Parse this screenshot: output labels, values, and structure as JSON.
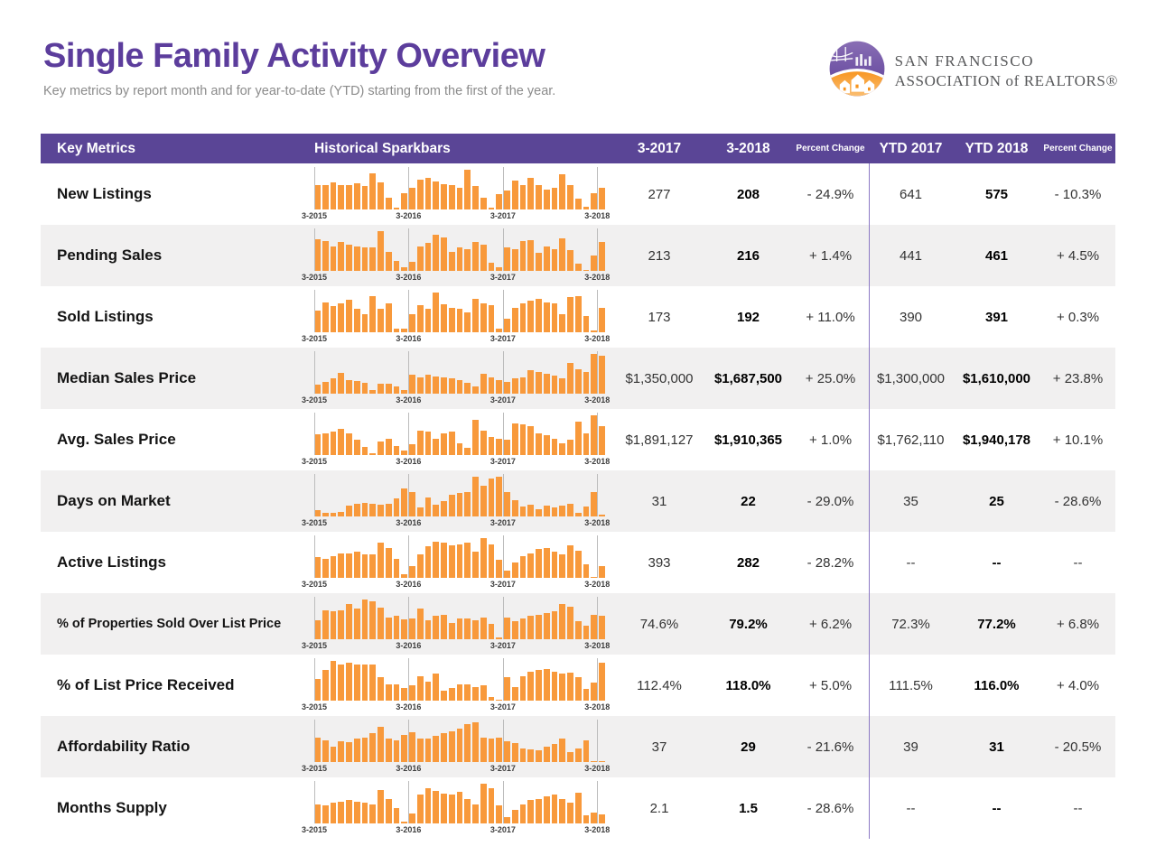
{
  "page": {
    "title": "Single Family Activity Overview",
    "subtitle": "Key metrics by report month and for year-to-date (YTD) starting from the first of the year."
  },
  "logo": {
    "line1": "SAN FRANCISCO",
    "line2": "ASSOCIATION of REALTORS®"
  },
  "colors": {
    "title_purple": "#5c3d9c",
    "header_bg": "#5a4596",
    "bar_orange": "#f8993b",
    "alt_row": "#f1f0f0",
    "divider_purple": "#8c79c4"
  },
  "table": {
    "columns": {
      "key_metrics": "Key Metrics",
      "sparkbars": "Historical Sparkbars",
      "m1": "3-2017",
      "m2": "3-2018",
      "pct": "Percent Change",
      "y1": "YTD 2017",
      "y2": "YTD 2018",
      "pct2": "Percent Change"
    },
    "axis_labels": [
      "3-2015",
      "3-2016",
      "3-2017",
      "3-2018"
    ],
    "rows": [
      {
        "label": "New Listings",
        "m1": "277",
        "m2": "208",
        "pct": "- 24.9%",
        "y1": "641",
        "y2": "575",
        "pct2": "- 10.3%",
        "spark": [
          62,
          62,
          68,
          62,
          62,
          65,
          58,
          92,
          68,
          30,
          5,
          42,
          55,
          75,
          80,
          70,
          63,
          62,
          55,
          100,
          58,
          30,
          5,
          38,
          48,
          72,
          62,
          80,
          62,
          50,
          55,
          88,
          62,
          28,
          6,
          42,
          55
        ]
      },
      {
        "label": "Pending Sales",
        "m1": "213",
        "m2": "216",
        "pct": "+ 1.4%",
        "y1": "441",
        "y2": "461",
        "pct2": "+ 4.5%",
        "spark": [
          80,
          75,
          62,
          72,
          65,
          62,
          60,
          58,
          100,
          48,
          25,
          10,
          22,
          62,
          70,
          92,
          85,
          48,
          58,
          55,
          72,
          65,
          20,
          8,
          60,
          55,
          75,
          78,
          45,
          62,
          55,
          82,
          52,
          18,
          3,
          38,
          72
        ]
      },
      {
        "label": "Sold Listings",
        "m1": "173",
        "m2": "192",
        "pct": "+ 11.0%",
        "y1": "390",
        "y2": "391",
        "pct2": "+ 0.3%",
        "spark": [
          55,
          75,
          65,
          72,
          82,
          60,
          45,
          92,
          58,
          72,
          8,
          8,
          45,
          68,
          58,
          100,
          70,
          62,
          58,
          50,
          85,
          72,
          68,
          10,
          35,
          62,
          72,
          80,
          85,
          75,
          72,
          45,
          88,
          92,
          40,
          4,
          62
        ]
      },
      {
        "label": "Median Sales Price",
        "m1": "$1,350,000",
        "m2": "$1,687,500",
        "pct": "+ 25.0%",
        "y1": "$1,300,000",
        "y2": "$1,610,000",
        "pct2": "+ 23.8%",
        "spark": [
          22,
          30,
          38,
          52,
          35,
          32,
          28,
          8,
          25,
          25,
          18,
          10,
          48,
          42,
          48,
          44,
          40,
          38,
          35,
          28,
          18,
          50,
          42,
          35,
          30,
          38,
          42,
          58,
          55,
          50,
          45,
          38,
          78,
          62,
          55,
          100,
          95
        ]
      },
      {
        "label": "Avg. Sales Price",
        "m1": "$1,891,127",
        "m2": "$1,910,365",
        "pct": "+ 1.0%",
        "y1": "$1,762,110",
        "y2": "$1,940,178",
        "pct2": "+ 10.1%",
        "spark": [
          52,
          55,
          58,
          65,
          55,
          38,
          20,
          5,
          35,
          42,
          22,
          12,
          28,
          62,
          58,
          42,
          55,
          58,
          30,
          18,
          88,
          62,
          45,
          42,
          38,
          80,
          78,
          72,
          55,
          50,
          42,
          30,
          38,
          85,
          55,
          100,
          72
        ]
      },
      {
        "label": "Days on Market",
        "m1": "31",
        "m2": "22",
        "pct": "- 29.0%",
        "y1": "35",
        "y2": "25",
        "pct2": "- 28.6%",
        "spark": [
          15,
          8,
          10,
          12,
          28,
          32,
          35,
          32,
          30,
          32,
          45,
          70,
          62,
          22,
          48,
          30,
          38,
          55,
          58,
          62,
          100,
          78,
          95,
          100,
          62,
          42,
          25,
          30,
          18,
          28,
          22,
          28,
          32,
          10,
          25,
          62,
          5
        ]
      },
      {
        "label": "Active Listings",
        "m1": "393",
        "m2": "282",
        "pct": "- 28.2%",
        "y1": "--",
        "y2": "--",
        "pct2": "--",
        "spark": [
          52,
          48,
          55,
          62,
          62,
          65,
          60,
          58,
          88,
          75,
          48,
          8,
          30,
          58,
          80,
          92,
          88,
          82,
          85,
          88,
          65,
          100,
          85,
          45,
          18,
          38,
          55,
          62,
          72,
          75,
          65,
          58,
          82,
          68,
          35,
          3,
          30
        ]
      },
      {
        "label": "% of Properties Sold Over List Price",
        "m1": "74.6%",
        "m2": "79.2%",
        "pct": "+ 6.2%",
        "y1": "72.3%",
        "y2": "77.2%",
        "pct2": "+ 6.8%",
        "spark": [
          48,
          72,
          70,
          72,
          88,
          78,
          100,
          95,
          80,
          55,
          58,
          50,
          52,
          78,
          48,
          58,
          62,
          40,
          52,
          52,
          48,
          55,
          38,
          5,
          55,
          45,
          52,
          58,
          62,
          65,
          70,
          88,
          82,
          45,
          35,
          62,
          60
        ]
      },
      {
        "label": "% of List Price Received",
        "m1": "112.4%",
        "m2": "118.0%",
        "pct": "+ 5.0%",
        "y1": "111.5%",
        "y2": "116.0%",
        "pct2": "+ 4.0%",
        "spark": [
          55,
          78,
          100,
          92,
          95,
          92,
          92,
          90,
          58,
          42,
          40,
          32,
          38,
          62,
          48,
          68,
          25,
          32,
          42,
          40,
          35,
          38,
          8,
          3,
          58,
          35,
          62,
          72,
          78,
          80,
          72,
          68,
          70,
          58,
          30,
          45,
          95
        ]
      },
      {
        "label": "Affordability Ratio",
        "m1": "37",
        "m2": "29",
        "pct": "- 21.6%",
        "y1": "39",
        "y2": "31",
        "pct2": "- 20.5%",
        "spark": [
          62,
          55,
          38,
          52,
          50,
          58,
          62,
          72,
          88,
          58,
          55,
          68,
          75,
          58,
          60,
          65,
          72,
          78,
          85,
          95,
          100,
          62,
          58,
          62,
          52,
          48,
          35,
          32,
          30,
          38,
          45,
          58,
          25,
          35,
          55,
          3,
          3
        ]
      },
      {
        "label": "Months Supply",
        "m1": "2.1",
        "m2": "1.5",
        "pct": "- 28.6%",
        "y1": "--",
        "y2": "--",
        "pct2": "--",
        "spark": [
          48,
          45,
          52,
          55,
          58,
          55,
          52,
          48,
          85,
          62,
          38,
          5,
          25,
          72,
          88,
          82,
          75,
          72,
          80,
          62,
          48,
          100,
          88,
          45,
          15,
          35,
          48,
          58,
          62,
          68,
          72,
          62,
          52,
          78,
          20,
          28,
          22
        ]
      }
    ]
  }
}
